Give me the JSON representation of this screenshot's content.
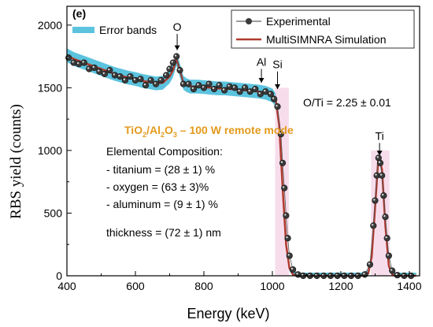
{
  "chart_data": {
    "type": "line",
    "panel_label": "(e)",
    "xlabel": "Energy (keV)",
    "ylabel": "RBS yield (counts)",
    "xlim": [
      400,
      1430
    ],
    "ylim": [
      0,
      2150
    ],
    "x_ticks": [
      400,
      600,
      800,
      1000,
      1200,
      1400
    ],
    "y_ticks": [
      0,
      500,
      1000,
      1500,
      2000
    ],
    "grid": false,
    "legend_left": {
      "entries": [
        "Error bands"
      ],
      "placement": "top-left"
    },
    "legend_right": {
      "entries": [
        "Experimental",
        "MultiSIMNRA Simulation"
      ],
      "placement": "top-right"
    },
    "colors": {
      "error_band": "#3fb8d8",
      "simulation": "#b03a2e",
      "experimental_marker": "#3a3a3a",
      "sample_title": "#e39a1d",
      "pink_highlight": "#f2c6df"
    },
    "sample_title": {
      "main": "TiO",
      "sub1": "2",
      "sep": "/Al",
      "sub2": "2",
      "main2": "O",
      "sub3": "3",
      "rest": " – 100 W remote mode"
    },
    "composition": {
      "heading": "Elemental Composition:",
      "lines": [
        "- titanium = (28 ± 1) %",
        "- oxygen = (63  ± 3)%",
        "- aluminum = (9 ± 1) %"
      ],
      "thickness": "thickness = (72 ± 1) nm"
    },
    "ratio": "O/Ti = 2.25 ± 0.01",
    "annotations": [
      {
        "label": "O",
        "x": 722,
        "y_from": 1930,
        "y_to": 1800
      },
      {
        "label": "Al",
        "x": 968,
        "y_from": 1650,
        "y_to": 1540
      },
      {
        "label": "Si",
        "x": 1015,
        "y_from": 1630,
        "y_to": 1490
      },
      {
        "label": "Ti",
        "x": 1313,
        "y_from": 1060,
        "y_to": 960
      }
    ],
    "series": [
      {
        "name": "MultiSIMNRA Simulation",
        "x": [
          400,
          420,
          440,
          460,
          480,
          500,
          520,
          540,
          560,
          580,
          600,
          620,
          640,
          660,
          680,
          700,
          710,
          720,
          730,
          740,
          750,
          760,
          780,
          800,
          820,
          840,
          860,
          880,
          900,
          920,
          940,
          960,
          980,
          1000,
          1010,
          1020,
          1030,
          1040,
          1050,
          1060,
          1080,
          1100,
          1150,
          1200,
          1260,
          1280,
          1290,
          1300,
          1310,
          1320,
          1330,
          1340,
          1350,
          1360,
          1380,
          1420
        ],
        "y": [
          1760,
          1730,
          1710,
          1690,
          1670,
          1650,
          1630,
          1610,
          1595,
          1580,
          1570,
          1555,
          1545,
          1535,
          1540,
          1590,
          1640,
          1730,
          1640,
          1540,
          1520,
          1510,
          1510,
          1505,
          1500,
          1495,
          1495,
          1490,
          1485,
          1480,
          1475,
          1470,
          1460,
          1440,
          1400,
          1200,
          700,
          250,
          60,
          10,
          0,
          0,
          0,
          0,
          0,
          20,
          150,
          550,
          960,
          850,
          400,
          80,
          10,
          0,
          0,
          0
        ]
      },
      {
        "name": "Experimental",
        "x": [
          405,
          420,
          435,
          450,
          465,
          480,
          495,
          510,
          525,
          540,
          555,
          570,
          585,
          600,
          615,
          630,
          645,
          660,
          675,
          690,
          700,
          710,
          720,
          730,
          740,
          755,
          770,
          785,
          800,
          815,
          830,
          845,
          860,
          875,
          890,
          905,
          920,
          935,
          950,
          965,
          980,
          995,
          1005,
          1015,
          1025,
          1030,
          1035,
          1040,
          1045,
          1050,
          1060,
          1075,
          1090,
          1110,
          1130,
          1150,
          1170,
          1190,
          1210,
          1230,
          1250,
          1270,
          1285,
          1295,
          1300,
          1305,
          1310,
          1315,
          1320,
          1325,
          1330,
          1335,
          1340,
          1350,
          1365,
          1385,
          1405
        ],
        "y": [
          1740,
          1700,
          1690,
          1700,
          1650,
          1660,
          1630,
          1610,
          1640,
          1600,
          1590,
          1560,
          1590,
          1560,
          1570,
          1520,
          1560,
          1530,
          1560,
          1600,
          1650,
          1700,
          1750,
          1640,
          1530,
          1530,
          1490,
          1520,
          1500,
          1530,
          1490,
          1520,
          1480,
          1510,
          1500,
          1470,
          1500,
          1470,
          1490,
          1450,
          1470,
          1450,
          1410,
          1350,
          1130,
          900,
          700,
          480,
          300,
          160,
          50,
          10,
          0,
          0,
          0,
          0,
          0,
          0,
          0,
          0,
          0,
          10,
          90,
          400,
          600,
          800,
          940,
          900,
          800,
          640,
          470,
          300,
          160,
          40,
          5,
          0,
          0
        ]
      }
    ]
  }
}
